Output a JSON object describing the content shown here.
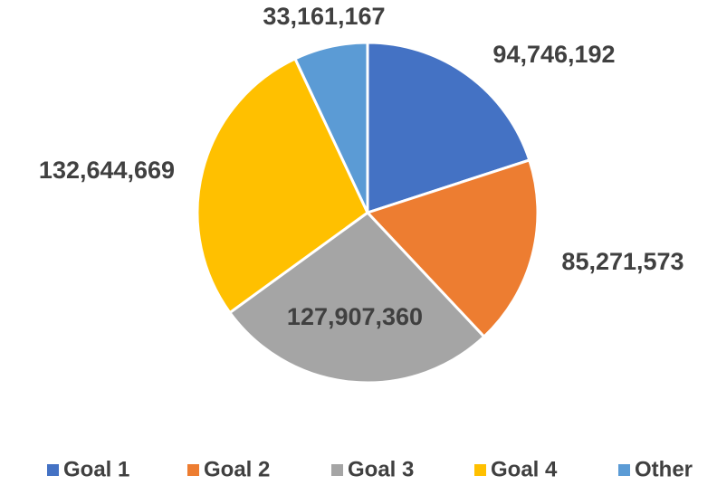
{
  "chart_data": {
    "type": "pie",
    "categories": [
      "Goal 1",
      "Goal 2",
      "Goal 3",
      "Goal 4",
      "Other"
    ],
    "values": [
      94746192,
      85271573,
      127907360,
      132644669,
      33161167
    ],
    "value_labels": [
      "94,746,192",
      "85,271,573",
      "127,907,360",
      "132,644,669",
      "33,161,167"
    ],
    "colors": [
      "#4472c4",
      "#ed7d31",
      "#a5a5a5",
      "#ffc000",
      "#5b9bd5"
    ],
    "legend": "bottom"
  }
}
